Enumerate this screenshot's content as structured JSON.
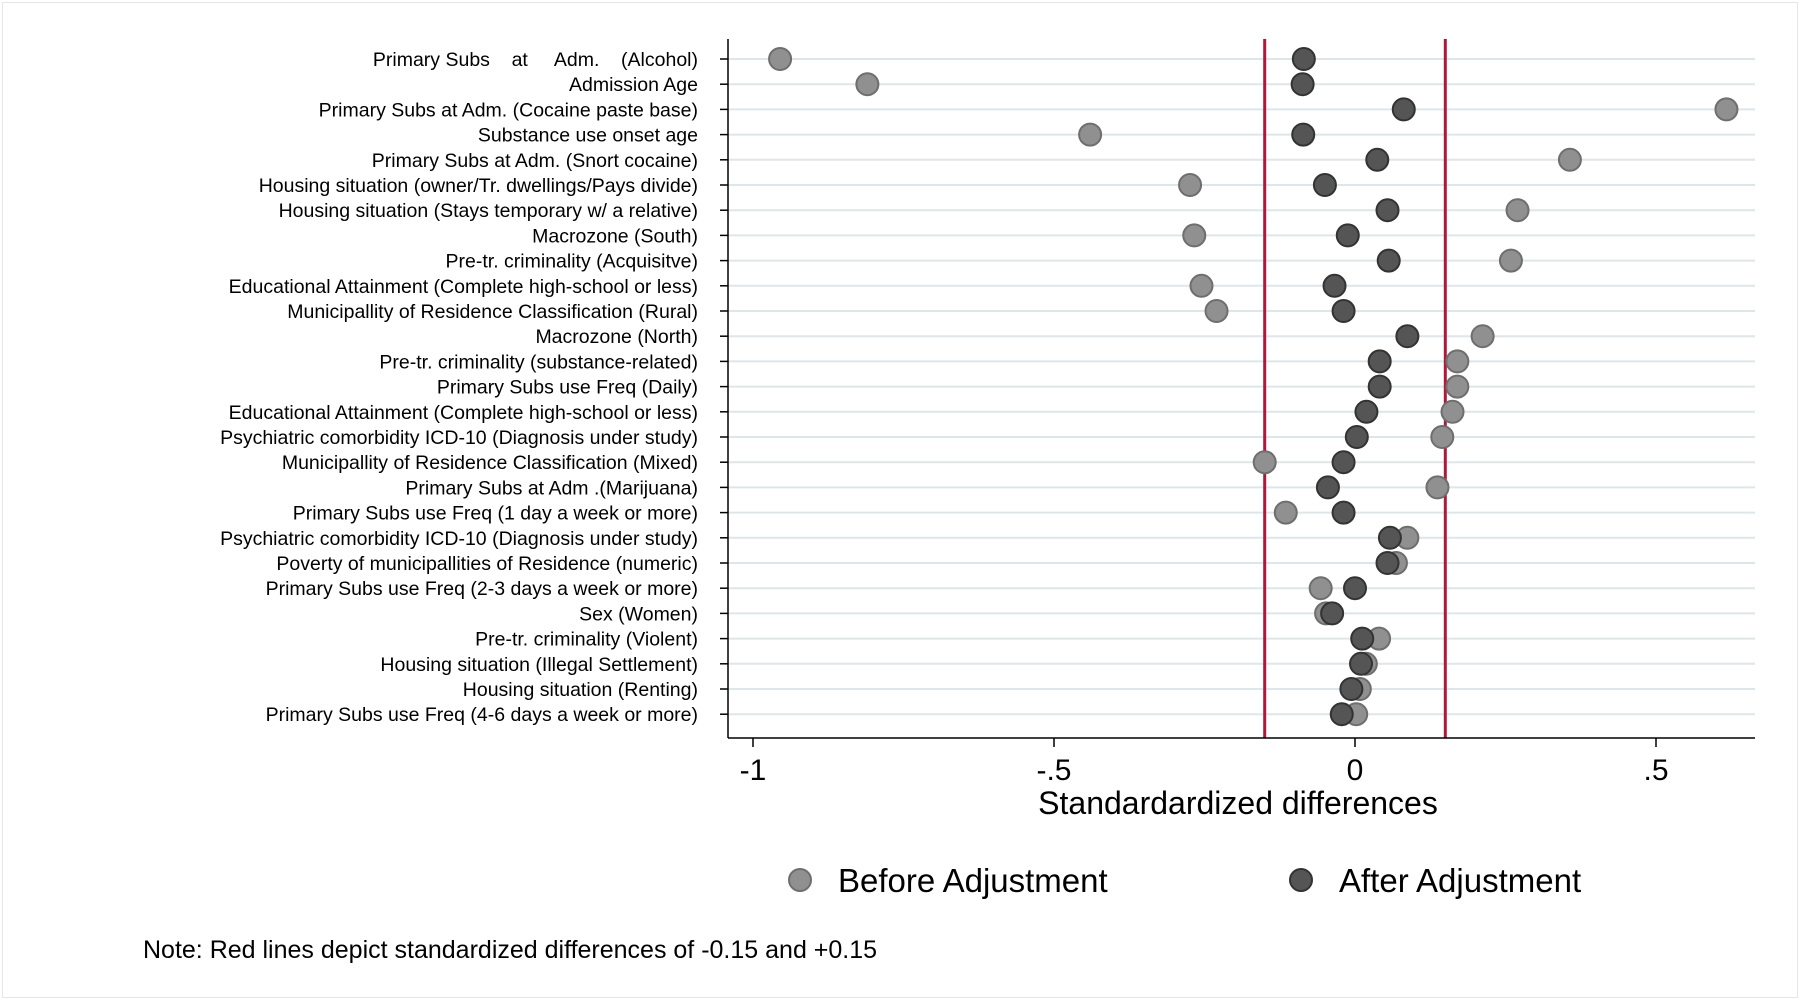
{
  "chart_data": {
    "type": "scatter",
    "orientation": "horizontal-dot",
    "xlabel": "Standardardized differences",
    "xlim": [
      -1.05,
      0.67
    ],
    "xticks": [
      -1,
      -0.5,
      0,
      0.5
    ],
    "xtick_labels": [
      "-1",
      "-.5",
      "0",
      ".5"
    ],
    "reference_lines": [
      -0.15,
      0.15
    ],
    "reference_line_color": "#b0173a",
    "grid": "horizontal",
    "legend_position": "bottom",
    "note": "Note: Red lines depict standardized differences of -0.15 and +0.15",
    "categories": [
      "Primary Subs    at     Adm.    (Alcohol)",
      "Admission Age",
      "Primary Subs at Adm. (Cocaine paste base)",
      "Substance use onset age",
      "Primary Subs at Adm. (Snort cocaine)",
      "Housing situation (owner/Tr. dwellings/Pays divide)",
      "Housing situation (Stays temporary w/ a relative)",
      "Macrozone (South)",
      "Pre-tr. criminality (Acquisitve)",
      "Educational Attainment (Complete high-school or less)",
      "Municipallity of Residence Classification (Rural)",
      "Macrozone (North)",
      "Pre-tr. criminality (substance-related)",
      "Primary Subs use Freq (Daily)",
      "Educational Attainment (Complete high-school or less)",
      "Psychiatric comorbidity ICD-10 (Diagnosis under study)",
      "Municipallity of Residence Classification (Mixed)",
      "Primary Subs at Adm .(Marijuana)",
      "Primary Subs use Freq (1 day a week or more)",
      "Psychiatric comorbidity ICD-10 (Diagnosis under study)",
      "Poverty of municipallities of Residence (numeric)",
      "Primary Subs use Freq (2-3 days a week or more)",
      "Sex (Women)",
      "Pre-tr. criminality (Violent)",
      "Housing situation (Illegal Settlement)",
      "Housing situation (Renting)",
      "Primary Subs use Freq (4-6 days a week or more)"
    ],
    "series": [
      {
        "name": "Before Adjustment",
        "color": "#909090",
        "values": [
          -0.955,
          -0.81,
          0.617,
          -0.44,
          0.357,
          -0.274,
          0.27,
          -0.267,
          0.259,
          -0.255,
          -0.23,
          0.212,
          0.17,
          0.17,
          0.162,
          0.145,
          -0.15,
          0.137,
          -0.115,
          0.087,
          0.068,
          -0.057,
          -0.048,
          0.04,
          0.018,
          0.008,
          0.002
        ]
      },
      {
        "name": "After Adjustment",
        "color": "#555555",
        "values": [
          -0.085,
          -0.087,
          0.081,
          -0.086,
          0.037,
          -0.05,
          0.054,
          -0.012,
          0.056,
          -0.034,
          -0.019,
          0.087,
          0.041,
          0.041,
          0.019,
          0.003,
          -0.019,
          -0.045,
          -0.019,
          0.058,
          0.054,
          0.0,
          -0.038,
          0.012,
          0.01,
          -0.006,
          -0.022
        ]
      }
    ]
  }
}
